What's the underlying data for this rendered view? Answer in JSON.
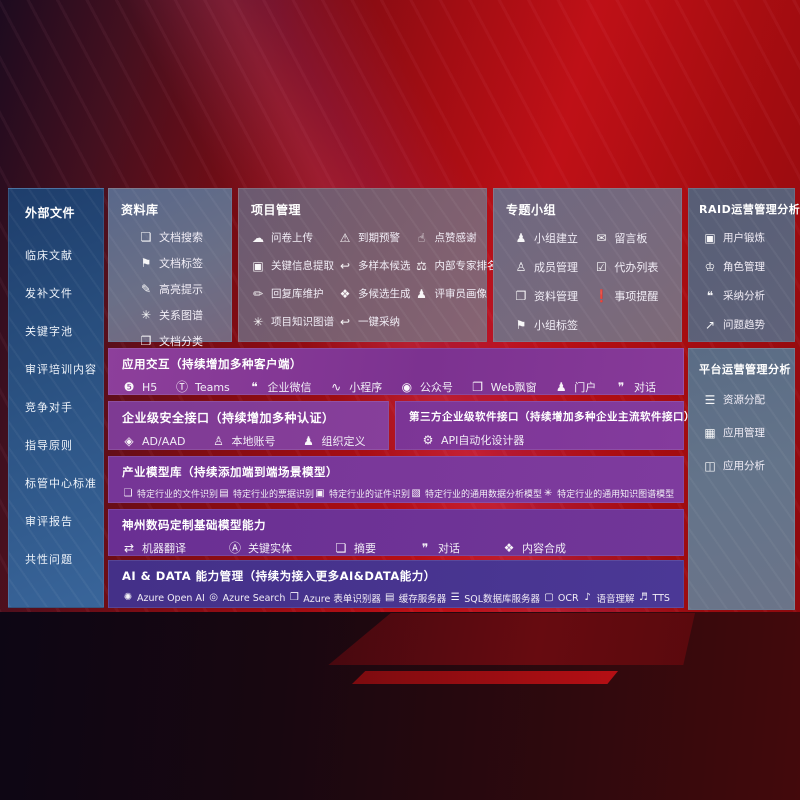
{
  "sidebar": {
    "title": "外部文件",
    "items": [
      "临床文献",
      "发补文件",
      "关键字池",
      "审评培训内容",
      "竞争对手",
      "指导原则",
      "标管中心标准",
      "审评报告",
      "共性问题"
    ]
  },
  "panels": {
    "library": {
      "title": "资料库",
      "items": [
        {
          "glyph": "❏",
          "label": "文档搜索"
        },
        {
          "glyph": "⚑",
          "label": "文档标签"
        },
        {
          "glyph": "✎",
          "label": "高亮提示"
        },
        {
          "glyph": "✳",
          "label": "关系图谱"
        },
        {
          "glyph": "❐",
          "label": "文档分类"
        }
      ]
    },
    "project": {
      "title": "项目管理",
      "items": [
        {
          "glyph": "☁",
          "label": "问卷上传"
        },
        {
          "glyph": "⚠",
          "label": "到期预警"
        },
        {
          "glyph": "☝",
          "label": "点赞感谢"
        },
        {
          "glyph": "▣",
          "label": "关键信息提取"
        },
        {
          "glyph": "↩",
          "label": "多样本候选"
        },
        {
          "glyph": "⚖",
          "label": "内部专家排名"
        },
        {
          "glyph": "✏",
          "label": "回复库维护"
        },
        {
          "glyph": "❖",
          "label": "多候选生成"
        },
        {
          "glyph": "♟",
          "label": "评审员画像"
        },
        {
          "glyph": "✳",
          "label": "项目知识图谱"
        },
        {
          "glyph": "↩",
          "label": "一键采纳"
        }
      ]
    },
    "groups": {
      "title": "专题小组",
      "items": [
        {
          "glyph": "♟",
          "label": "小组建立"
        },
        {
          "glyph": "✉",
          "label": "留言板"
        },
        {
          "glyph": "♙",
          "label": "成员管理"
        },
        {
          "glyph": "☑",
          "label": "代办列表"
        },
        {
          "glyph": "❐",
          "label": "资料管理"
        },
        {
          "glyph": "❗",
          "label": "事项提醒"
        },
        {
          "glyph": "⚑",
          "label": "小组标签"
        }
      ]
    },
    "raid": {
      "title": "RAID运营管理分析",
      "items": [
        {
          "glyph": "▣",
          "label": "用户锻炼"
        },
        {
          "glyph": "♔",
          "label": "角色管理"
        },
        {
          "glyph": "❝",
          "label": "采纳分析"
        },
        {
          "glyph": "↗",
          "label": "问题趋势"
        }
      ]
    },
    "platform": {
      "title": "平台运营管理分析",
      "items": [
        {
          "glyph": "☰",
          "label": "资源分配"
        },
        {
          "glyph": "▦",
          "label": "应用管理"
        },
        {
          "glyph": "◫",
          "label": "应用分析"
        }
      ]
    },
    "interaction": {
      "title": "应用交互（持续增加多种客户端）",
      "items": [
        {
          "glyph": "❺",
          "label": "H5"
        },
        {
          "glyph": "Ⓣ",
          "label": "Teams"
        },
        {
          "glyph": "❝",
          "label": "企业微信"
        },
        {
          "glyph": "∿",
          "label": "小程序"
        },
        {
          "glyph": "◉",
          "label": "公众号"
        },
        {
          "glyph": "❐",
          "label": "Web飘窗"
        },
        {
          "glyph": "♟",
          "label": "门户"
        },
        {
          "glyph": "❞",
          "label": "对话"
        }
      ]
    },
    "security": {
      "title": "企业级安全接口（持续增加多种认证）",
      "items": [
        {
          "glyph": "◈",
          "label": "AD/AAD"
        },
        {
          "glyph": "♙",
          "label": "本地账号"
        },
        {
          "glyph": "♟",
          "label": "组织定义"
        }
      ]
    },
    "thirdparty": {
      "title": "第三方企业级软件接口（持续增加多种企业主流软件接口）",
      "items": [
        {
          "glyph": "⚙",
          "label": "API自动化设计器"
        }
      ]
    },
    "models": {
      "title": "产业模型库（持续添加端到端场景模型）",
      "items": [
        {
          "glyph": "❏",
          "label": "特定行业的文件识别"
        },
        {
          "glyph": "▤",
          "label": "特定行业的票据识别"
        },
        {
          "glyph": "▣",
          "label": "特定行业的证件识别"
        },
        {
          "glyph": "▧",
          "label": "特定行业的通用数据分析模型"
        },
        {
          "glyph": "✳",
          "label": "特定行业的通用知识图谱模型"
        }
      ]
    },
    "foundation": {
      "title": "神州数码定制基础模型能力",
      "items": [
        {
          "glyph": "⇄",
          "label": "机器翻译"
        },
        {
          "glyph": "Ⓐ",
          "label": "关键实体"
        },
        {
          "glyph": "❏",
          "label": "摘要"
        },
        {
          "glyph": "❞",
          "label": "对话"
        },
        {
          "glyph": "❖",
          "label": "内容合成"
        }
      ]
    },
    "aidata": {
      "title": "AI & DATA 能力管理（持续为接入更多AI&DATA能力）",
      "items": [
        {
          "glyph": "✺",
          "label": "Azure Open AI"
        },
        {
          "glyph": "◎",
          "label": "Azure Search"
        },
        {
          "glyph": "❒",
          "label": "Azure 表单识别器"
        },
        {
          "glyph": "▤",
          "label": "缓存服务器"
        },
        {
          "glyph": "☰",
          "label": "SQL数据库服务器"
        },
        {
          "glyph": "▢",
          "label": "OCR"
        },
        {
          "glyph": "♪",
          "label": "语音理解"
        },
        {
          "glyph": "♬",
          "label": "TTS"
        }
      ]
    }
  }
}
